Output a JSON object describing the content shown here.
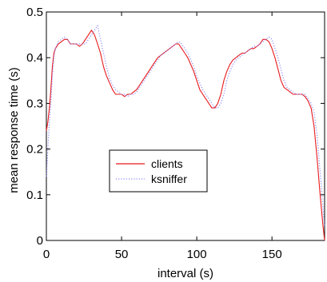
{
  "chart_data": {
    "type": "line",
    "xlabel": "interval (s)",
    "ylabel": "mean response time (s)",
    "xlim": [
      0,
      185
    ],
    "ylim": [
      0,
      0.5
    ],
    "xticks": [
      0,
      50,
      100,
      150
    ],
    "yticks": [
      0,
      0.1,
      0.2,
      0.3,
      0.4,
      0.5
    ],
    "xtick_labels": [
      "0",
      "50",
      "100",
      "150"
    ],
    "ytick_labels": [
      "0",
      "0.1",
      "0.2",
      "0.3",
      "0.4",
      "0.5"
    ],
    "grid": false,
    "legend_position": "center-left",
    "series": [
      {
        "name": "clients",
        "color": "#e8191c",
        "style": "solid",
        "points": [
          [
            0,
            0.24
          ],
          [
            1,
            0.26
          ],
          [
            2,
            0.29
          ],
          [
            3,
            0.33
          ],
          [
            4,
            0.38
          ],
          [
            5,
            0.41
          ],
          [
            6,
            0.42
          ],
          [
            8,
            0.43
          ],
          [
            10,
            0.435
          ],
          [
            12,
            0.44
          ],
          [
            14,
            0.44
          ],
          [
            16,
            0.43
          ],
          [
            18,
            0.43
          ],
          [
            20,
            0.43
          ],
          [
            22,
            0.425
          ],
          [
            24,
            0.43
          ],
          [
            26,
            0.44
          ],
          [
            28,
            0.45
          ],
          [
            30,
            0.46
          ],
          [
            32,
            0.45
          ],
          [
            34,
            0.43
          ],
          [
            36,
            0.41
          ],
          [
            38,
            0.38
          ],
          [
            40,
            0.36
          ],
          [
            42,
            0.345
          ],
          [
            44,
            0.33
          ],
          [
            46,
            0.32
          ],
          [
            48,
            0.32
          ],
          [
            50,
            0.32
          ],
          [
            52,
            0.315
          ],
          [
            54,
            0.32
          ],
          [
            56,
            0.32
          ],
          [
            58,
            0.325
          ],
          [
            60,
            0.33
          ],
          [
            62,
            0.34
          ],
          [
            64,
            0.35
          ],
          [
            66,
            0.36
          ],
          [
            68,
            0.37
          ],
          [
            70,
            0.38
          ],
          [
            72,
            0.39
          ],
          [
            74,
            0.4
          ],
          [
            76,
            0.405
          ],
          [
            78,
            0.41
          ],
          [
            80,
            0.415
          ],
          [
            82,
            0.42
          ],
          [
            84,
            0.425
          ],
          [
            86,
            0.43
          ],
          [
            88,
            0.43
          ],
          [
            90,
            0.42
          ],
          [
            92,
            0.41
          ],
          [
            94,
            0.4
          ],
          [
            96,
            0.385
          ],
          [
            98,
            0.37
          ],
          [
            100,
            0.35
          ],
          [
            102,
            0.33
          ],
          [
            104,
            0.32
          ],
          [
            106,
            0.31
          ],
          [
            108,
            0.3
          ],
          [
            110,
            0.29
          ],
          [
            112,
            0.29
          ],
          [
            114,
            0.3
          ],
          [
            116,
            0.32
          ],
          [
            118,
            0.35
          ],
          [
            120,
            0.37
          ],
          [
            122,
            0.385
          ],
          [
            124,
            0.395
          ],
          [
            126,
            0.4
          ],
          [
            128,
            0.405
          ],
          [
            130,
            0.41
          ],
          [
            132,
            0.41
          ],
          [
            134,
            0.415
          ],
          [
            136,
            0.42
          ],
          [
            138,
            0.42
          ],
          [
            140,
            0.425
          ],
          [
            142,
            0.43
          ],
          [
            144,
            0.44
          ],
          [
            146,
            0.44
          ],
          [
            148,
            0.435
          ],
          [
            150,
            0.42
          ],
          [
            152,
            0.4
          ],
          [
            154,
            0.375
          ],
          [
            156,
            0.35
          ],
          [
            158,
            0.335
          ],
          [
            160,
            0.33
          ],
          [
            162,
            0.325
          ],
          [
            164,
            0.32
          ],
          [
            166,
            0.32
          ],
          [
            168,
            0.32
          ],
          [
            170,
            0.32
          ],
          [
            172,
            0.315
          ],
          [
            174,
            0.305
          ],
          [
            176,
            0.29
          ],
          [
            178,
            0.25
          ],
          [
            180,
            0.18
          ],
          [
            182,
            0.1
          ],
          [
            184,
            0.03
          ],
          [
            185,
            0.0
          ]
        ]
      },
      {
        "name": "ksniffer",
        "color": "#8a8aff",
        "style": "dotted",
        "points": [
          [
            0,
            0.14
          ],
          [
            1,
            0.2
          ],
          [
            2,
            0.26
          ],
          [
            3,
            0.3
          ],
          [
            4,
            0.36
          ],
          [
            5,
            0.4
          ],
          [
            6,
            0.42
          ],
          [
            8,
            0.435
          ],
          [
            10,
            0.44
          ],
          [
            12,
            0.445
          ],
          [
            14,
            0.44
          ],
          [
            16,
            0.43
          ],
          [
            18,
            0.43
          ],
          [
            20,
            0.43
          ],
          [
            22,
            0.43
          ],
          [
            24,
            0.43
          ],
          [
            26,
            0.43
          ],
          [
            28,
            0.44
          ],
          [
            30,
            0.45
          ],
          [
            32,
            0.46
          ],
          [
            34,
            0.47
          ],
          [
            36,
            0.44
          ],
          [
            38,
            0.41
          ],
          [
            40,
            0.38
          ],
          [
            42,
            0.355
          ],
          [
            44,
            0.34
          ],
          [
            46,
            0.33
          ],
          [
            48,
            0.325
          ],
          [
            50,
            0.32
          ],
          [
            52,
            0.32
          ],
          [
            54,
            0.315
          ],
          [
            56,
            0.32
          ],
          [
            58,
            0.32
          ],
          [
            60,
            0.325
          ],
          [
            62,
            0.335
          ],
          [
            64,
            0.345
          ],
          [
            66,
            0.355
          ],
          [
            68,
            0.365
          ],
          [
            70,
            0.375
          ],
          [
            72,
            0.385
          ],
          [
            74,
            0.395
          ],
          [
            76,
            0.405
          ],
          [
            78,
            0.41
          ],
          [
            80,
            0.415
          ],
          [
            82,
            0.42
          ],
          [
            84,
            0.425
          ],
          [
            86,
            0.43
          ],
          [
            88,
            0.435
          ],
          [
            90,
            0.43
          ],
          [
            92,
            0.42
          ],
          [
            94,
            0.41
          ],
          [
            96,
            0.395
          ],
          [
            98,
            0.38
          ],
          [
            100,
            0.36
          ],
          [
            102,
            0.345
          ],
          [
            104,
            0.33
          ],
          [
            106,
            0.32
          ],
          [
            108,
            0.31
          ],
          [
            110,
            0.3
          ],
          [
            112,
            0.29
          ],
          [
            114,
            0.29
          ],
          [
            116,
            0.3
          ],
          [
            118,
            0.32
          ],
          [
            120,
            0.35
          ],
          [
            122,
            0.37
          ],
          [
            124,
            0.385
          ],
          [
            126,
            0.395
          ],
          [
            128,
            0.4
          ],
          [
            130,
            0.405
          ],
          [
            132,
            0.41
          ],
          [
            134,
            0.415
          ],
          [
            136,
            0.42
          ],
          [
            138,
            0.425
          ],
          [
            140,
            0.425
          ],
          [
            142,
            0.43
          ],
          [
            144,
            0.435
          ],
          [
            146,
            0.44
          ],
          [
            148,
            0.445
          ],
          [
            150,
            0.44
          ],
          [
            152,
            0.42
          ],
          [
            154,
            0.4
          ],
          [
            156,
            0.375
          ],
          [
            158,
            0.35
          ],
          [
            160,
            0.335
          ],
          [
            162,
            0.33
          ],
          [
            164,
            0.325
          ],
          [
            166,
            0.32
          ],
          [
            168,
            0.32
          ],
          [
            170,
            0.32
          ],
          [
            172,
            0.32
          ],
          [
            174,
            0.31
          ],
          [
            176,
            0.3
          ],
          [
            178,
            0.28
          ],
          [
            180,
            0.23
          ],
          [
            182,
            0.15
          ],
          [
            184,
            0.07
          ],
          [
            185,
            0.03
          ]
        ]
      }
    ]
  }
}
